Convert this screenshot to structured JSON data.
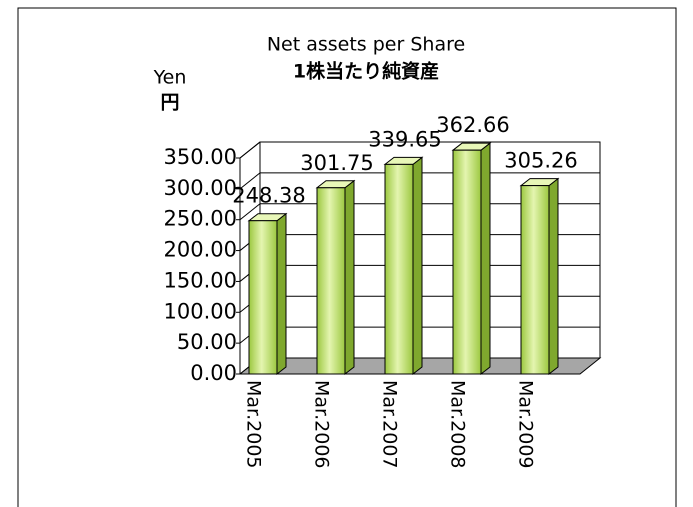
{
  "chart_data": {
    "type": "bar3d",
    "title": "Net assets per Share",
    "subtitle": "1株当たり純資産",
    "y_label": "Yen",
    "y_label_2": "円",
    "categories": [
      "Mar.2005",
      "Mar.2006",
      "Mar.2007",
      "Mar.2008",
      "Mar.2009"
    ],
    "values": [
      248.38,
      301.75,
      339.65,
      362.66,
      305.26
    ],
    "value_labels": [
      "248.38",
      "301.75",
      "339.65",
      "362.66",
      "305.26"
    ],
    "color": "#b5da6a",
    "ylim": [
      0,
      350
    ],
    "yticks": [
      {
        "value": 0,
        "label": "0.00"
      },
      {
        "value": 50,
        "label": "50.00"
      },
      {
        "value": 100,
        "label": "100.00"
      },
      {
        "value": 150,
        "label": "150.00"
      },
      {
        "value": 200,
        "label": "200.00"
      },
      {
        "value": 250,
        "label": "250.00"
      },
      {
        "value": 300,
        "label": "300.00"
      },
      {
        "value": 350,
        "label": "350.00"
      }
    ],
    "grid": true
  }
}
